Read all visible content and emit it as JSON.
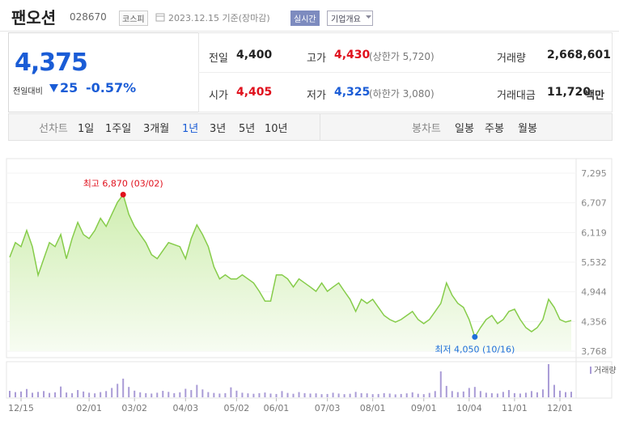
{
  "header": {
    "title": "팬오션",
    "code": "028670",
    "market": "코스피",
    "date": "2023.12.15 기준(장마감)",
    "realtime": "실시간",
    "company": "기업개요"
  },
  "quote": {
    "price": "4,375",
    "change_label": "전일대비",
    "change": "25",
    "change_rate": "-0.57%",
    "rows": [
      [
        {
          "label": "전일",
          "value": "4,400"
        },
        {
          "label": "고가",
          "value": "4,430",
          "note": "(상한가 5,720)"
        },
        {
          "label": "거래량",
          "value": "2,668,601"
        }
      ],
      [
        {
          "label": "시가",
          "value": "4,405"
        },
        {
          "label": "저가",
          "value": "4,325",
          "note": "(하한가 3,080)"
        },
        {
          "label": "거래대금",
          "value": "11,720",
          "unit": "백만"
        }
      ]
    ]
  },
  "tabs": {
    "line_label": "선차트",
    "periods": [
      "1일",
      "1주일",
      "3개월",
      "1년",
      "3년",
      "5년",
      "10년"
    ],
    "candle_label": "봉차트",
    "candles": [
      "일봉",
      "주봉",
      "월봉"
    ]
  },
  "chart_data": {
    "type": "line",
    "categories": [
      null,
      null,
      "12/15",
      null,
      null,
      null,
      null,
      null,
      null,
      null,
      null,
      null,
      null,
      null,
      "02/01",
      null,
      null,
      null,
      null,
      null,
      null,
      null,
      "03/02",
      null,
      null,
      null,
      null,
      null,
      null,
      null,
      null,
      "04/03",
      null,
      null,
      null,
      null,
      null,
      null,
      null,
      null,
      "05/02",
      null,
      null,
      null,
      null,
      null,
      null,
      "06/01",
      null,
      null,
      null,
      null,
      null,
      null,
      null,
      null,
      "07/03",
      null,
      null,
      null,
      null,
      null,
      null,
      null,
      "08/01",
      null,
      null,
      null,
      null,
      null,
      null,
      null,
      null,
      "09/01",
      null,
      null,
      null,
      null,
      null,
      null,
      null,
      "10/04",
      null,
      null,
      null,
      null,
      null,
      null,
      null,
      "11/01",
      null,
      null,
      null,
      null,
      null,
      null,
      null,
      "12/01",
      null,
      null
    ],
    "series": [
      {
        "color": "#86cc4a",
        "values": [
          5630,
          5920,
          5840,
          6160,
          5840,
          5275,
          5600,
          5920,
          5840,
          6080,
          5600,
          6000,
          6320,
          6080,
          6000,
          6160,
          6400,
          6240,
          6480,
          6720,
          6870,
          6480,
          6240,
          6080,
          5920,
          5680,
          5600,
          5760,
          5920,
          5880,
          5840,
          5600,
          6000,
          6270,
          6080,
          5840,
          5440,
          5200,
          5280,
          5200,
          5200,
          5280,
          5200,
          5120,
          4955,
          4760,
          4760,
          5280,
          5280,
          5200,
          5040,
          5200,
          5120,
          5040,
          4955,
          5120,
          4955,
          5040,
          5120,
          4955,
          4795,
          4555,
          4795,
          4715,
          4795,
          4635,
          4475,
          4395,
          4345,
          4395,
          4475,
          4555,
          4395,
          4315,
          4395,
          4555,
          4715,
          5120,
          4875,
          4715,
          4635,
          4395,
          4050,
          4235,
          4395,
          4475,
          4315,
          4395,
          4555,
          4600,
          4395,
          4235,
          4155,
          4235,
          4395,
          4795,
          4635,
          4395,
          4345,
          4375
        ]
      }
    ],
    "volume": {
      "name": "거래량",
      "color": "#a99bd6",
      "values": [
        3100000,
        2500000,
        2800000,
        4000000,
        2200000,
        2600000,
        3000000,
        2100000,
        2400000,
        5200000,
        2300000,
        2000000,
        3500000,
        2800000,
        2200000,
        1900000,
        2500000,
        3000000,
        4500000,
        6500000,
        9000000,
        5000000,
        3200000,
        2400000,
        2000000,
        1800000,
        2200000,
        3100000,
        2600000,
        2000000,
        2400000,
        4100000,
        3500000,
        6000000,
        3800000,
        2500000,
        2100000,
        1800000,
        2000000,
        4800000,
        3200000,
        2200000,
        1900000,
        1700000,
        2000000,
        2300000,
        1800000,
        1600000,
        3000000,
        2100000,
        1700000,
        2500000,
        2000000,
        1800000,
        1900000,
        1500000,
        1600000,
        2200000,
        1800000,
        1500000,
        1700000,
        2600000,
        2000000,
        1900000,
        1500000,
        1600000,
        2000000,
        1800000,
        1400000,
        1600000,
        1900000,
        2400000,
        1700000,
        1500000,
        2100000,
        3000000,
        12500000,
        5500000,
        3000000,
        2500000,
        2800000,
        4500000,
        5000000,
        3000000,
        2200000,
        2000000,
        1800000,
        2600000,
        3500000,
        2000000,
        1800000,
        2200000,
        3000000,
        2400000,
        3800000,
        16000000,
        6000000,
        3200000,
        2500000,
        2668601
      ]
    },
    "ylim": [
      3768,
      7295
    ],
    "yticks": [
      {
        "value": 3768,
        "label": "3,768"
      },
      {
        "value": 4356,
        "label": "4,356"
      },
      {
        "value": 4944,
        "label": "4,944"
      },
      {
        "value": 5532,
        "label": "5,532"
      },
      {
        "value": 6119,
        "label": "6,119"
      },
      {
        "value": 6707,
        "label": "6,707"
      },
      {
        "value": 7295,
        "label": "7,295"
      }
    ],
    "high_label": "최고 6,870 (03/02)",
    "low_label": "최저 4,050 (10/16)",
    "high_color": "#e0101c",
    "low_color": "#1e6fd9"
  }
}
